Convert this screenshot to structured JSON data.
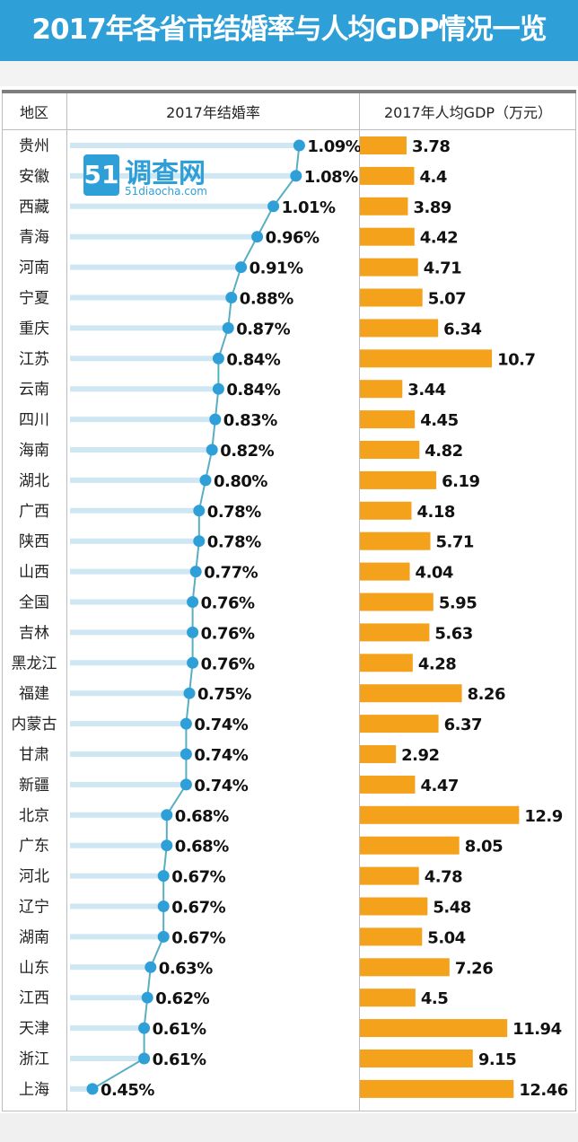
{
  "title": "2017年各省市结婚率与人均GDP情况一览",
  "headers": {
    "region": "地区",
    "marriage": "2017年结婚率",
    "gdp": "2017年人均GDP（万元）"
  },
  "watermark": {
    "badge": "51",
    "name": "调查网",
    "url": "51diaocha.com"
  },
  "colors": {
    "title_bg": "#2f9fd8",
    "dot": "#2f9fd8",
    "line": "#59aec2",
    "guide": "#cfe6f3",
    "bar": "#f4a21c"
  },
  "chart_data": {
    "type": "table",
    "columns": [
      "地区",
      "2017年结婚率",
      "2017年人均GDP（万元）"
    ],
    "marriage_unit": "%",
    "rows": [
      {
        "region": "贵州",
        "marriage_rate": 1.09,
        "marriage_label": "1.09%",
        "gdp": 3.78,
        "gdp_label": "3.78"
      },
      {
        "region": "安徽",
        "marriage_rate": 1.08,
        "marriage_label": "1.08%",
        "gdp": 4.4,
        "gdp_label": "4.4"
      },
      {
        "region": "西藏",
        "marriage_rate": 1.01,
        "marriage_label": "1.01%",
        "gdp": 3.89,
        "gdp_label": "3.89"
      },
      {
        "region": "青海",
        "marriage_rate": 0.96,
        "marriage_label": "0.96%",
        "gdp": 4.42,
        "gdp_label": "4.42"
      },
      {
        "region": "河南",
        "marriage_rate": 0.91,
        "marriage_label": "0.91%",
        "gdp": 4.71,
        "gdp_label": "4.71"
      },
      {
        "region": "宁夏",
        "marriage_rate": 0.88,
        "marriage_label": "0.88%",
        "gdp": 5.07,
        "gdp_label": "5.07"
      },
      {
        "region": "重庆",
        "marriage_rate": 0.87,
        "marriage_label": "0.87%",
        "gdp": 6.34,
        "gdp_label": "6.34"
      },
      {
        "region": "江苏",
        "marriage_rate": 0.84,
        "marriage_label": "0.84%",
        "gdp": 10.7,
        "gdp_label": "10.7"
      },
      {
        "region": "云南",
        "marriage_rate": 0.84,
        "marriage_label": "0.84%",
        "gdp": 3.44,
        "gdp_label": "3.44"
      },
      {
        "region": "四川",
        "marriage_rate": 0.83,
        "marriage_label": "0.83%",
        "gdp": 4.45,
        "gdp_label": "4.45"
      },
      {
        "region": "海南",
        "marriage_rate": 0.82,
        "marriage_label": "0.82%",
        "gdp": 4.82,
        "gdp_label": "4.82"
      },
      {
        "region": "湖北",
        "marriage_rate": 0.8,
        "marriage_label": "0.80%",
        "gdp": 6.19,
        "gdp_label": "6.19"
      },
      {
        "region": "广西",
        "marriage_rate": 0.78,
        "marriage_label": "0.78%",
        "gdp": 4.18,
        "gdp_label": "4.18"
      },
      {
        "region": "陕西",
        "marriage_rate": 0.78,
        "marriage_label": "0.78%",
        "gdp": 5.71,
        "gdp_label": "5.71"
      },
      {
        "region": "山西",
        "marriage_rate": 0.77,
        "marriage_label": "0.77%",
        "gdp": 4.04,
        "gdp_label": "4.04"
      },
      {
        "region": "全国",
        "marriage_rate": 0.76,
        "marriage_label": "0.76%",
        "gdp": 5.95,
        "gdp_label": "5.95"
      },
      {
        "region": "吉林",
        "marriage_rate": 0.76,
        "marriage_label": "0.76%",
        "gdp": 5.63,
        "gdp_label": "5.63"
      },
      {
        "region": "黑龙江",
        "marriage_rate": 0.76,
        "marriage_label": "0.76%",
        "gdp": 4.28,
        "gdp_label": "4.28"
      },
      {
        "region": "福建",
        "marriage_rate": 0.75,
        "marriage_label": "0.75%",
        "gdp": 8.26,
        "gdp_label": "8.26"
      },
      {
        "region": "内蒙古",
        "marriage_rate": 0.74,
        "marriage_label": "0.74%",
        "gdp": 6.37,
        "gdp_label": "6.37"
      },
      {
        "region": "甘肃",
        "marriage_rate": 0.74,
        "marriage_label": "0.74%",
        "gdp": 2.92,
        "gdp_label": "2.92"
      },
      {
        "region": "新疆",
        "marriage_rate": 0.74,
        "marriage_label": "0.74%",
        "gdp": 4.47,
        "gdp_label": "4.47"
      },
      {
        "region": "北京",
        "marriage_rate": 0.68,
        "marriage_label": "0.68%",
        "gdp": 12.9,
        "gdp_label": "12.9"
      },
      {
        "region": "广东",
        "marriage_rate": 0.68,
        "marriage_label": "0.68%",
        "gdp": 8.05,
        "gdp_label": "8.05"
      },
      {
        "region": "河北",
        "marriage_rate": 0.67,
        "marriage_label": "0.67%",
        "gdp": 4.78,
        "gdp_label": "4.78"
      },
      {
        "region": "辽宁",
        "marriage_rate": 0.67,
        "marriage_label": "0.67%",
        "gdp": 5.48,
        "gdp_label": "5.48"
      },
      {
        "region": "湖南",
        "marriage_rate": 0.67,
        "marriage_label": "0.67%",
        "gdp": 5.04,
        "gdp_label": "5.04"
      },
      {
        "region": "山东",
        "marriage_rate": 0.63,
        "marriage_label": "0.63%",
        "gdp": 7.26,
        "gdp_label": "7.26"
      },
      {
        "region": "江西",
        "marriage_rate": 0.62,
        "marriage_label": "0.62%",
        "gdp": 4.5,
        "gdp_label": "4.5"
      },
      {
        "region": "天津",
        "marriage_rate": 0.61,
        "marriage_label": "0.61%",
        "gdp": 11.94,
        "gdp_label": "11.94"
      },
      {
        "region": "浙江",
        "marriage_rate": 0.61,
        "marriage_label": "0.61%",
        "gdp": 9.15,
        "gdp_label": "9.15"
      },
      {
        "region": "上海",
        "marriage_rate": 0.45,
        "marriage_label": "0.45%",
        "gdp": 12.46,
        "gdp_label": "12.46"
      }
    ]
  }
}
